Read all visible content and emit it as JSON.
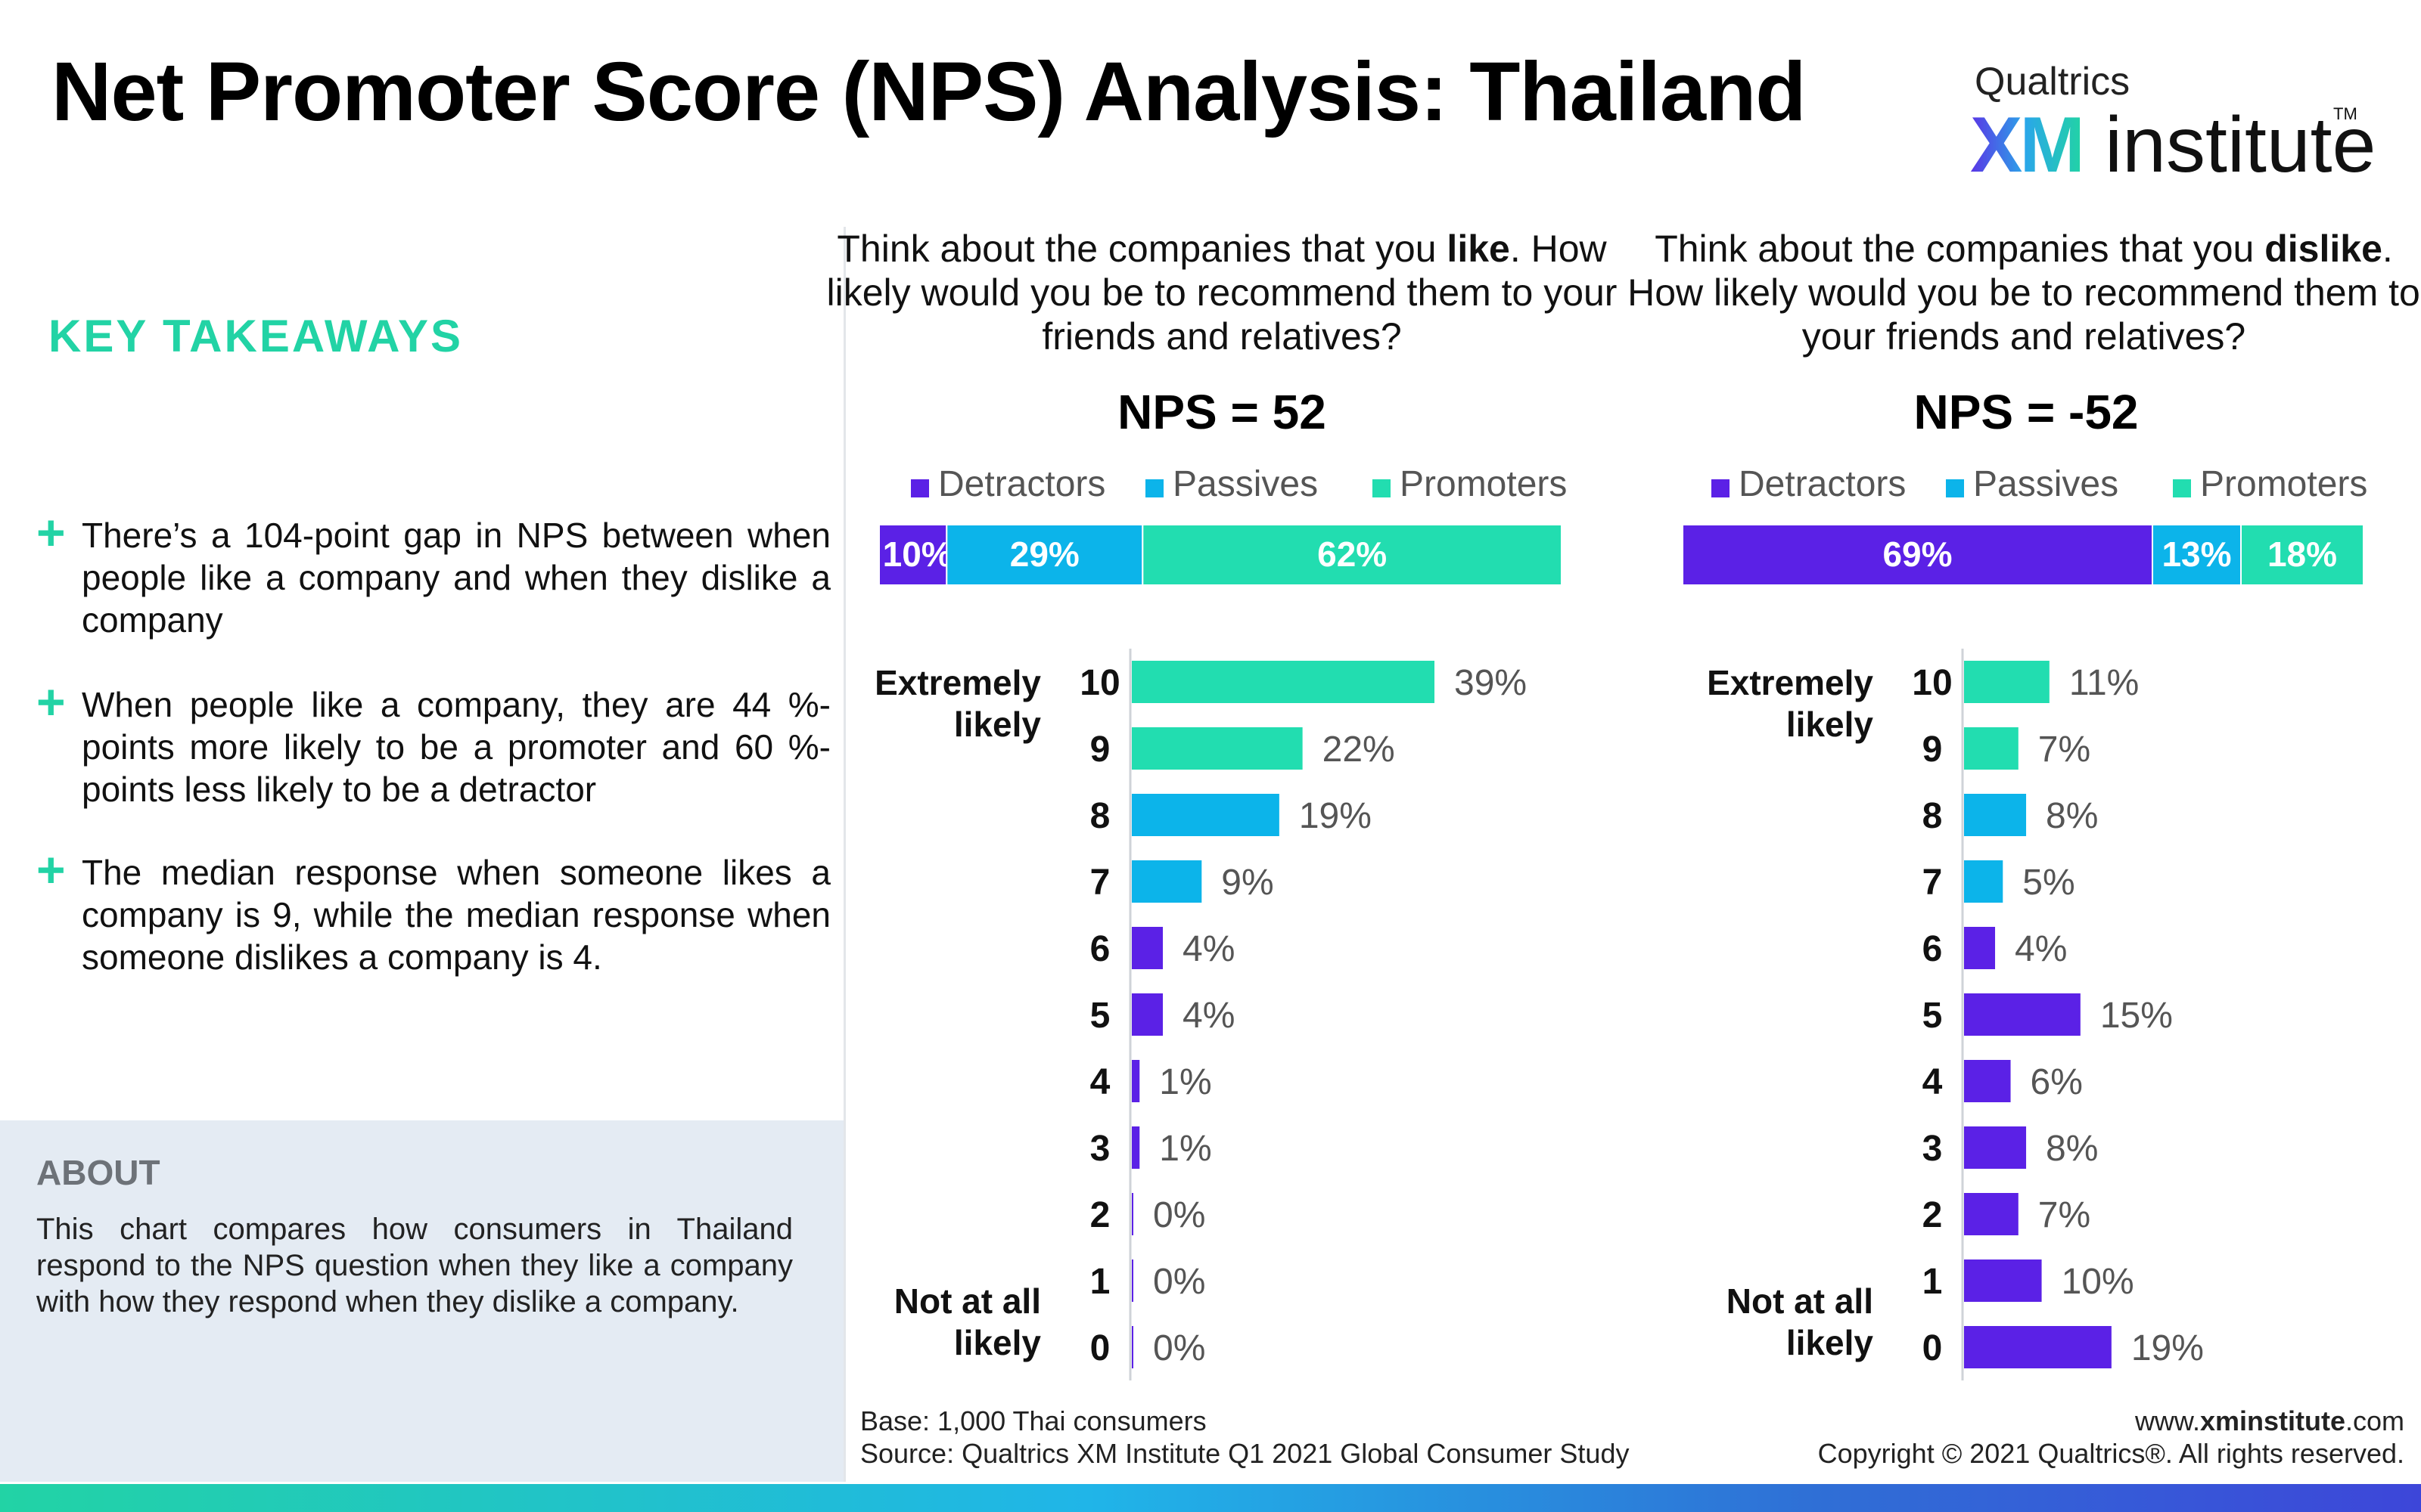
{
  "title": "Net Promoter Score (NPS) Analysis: Thailand",
  "logo": {
    "top": "Qualtrics",
    "xm": "XM",
    "institute": "institute",
    "tm": "TM"
  },
  "takeaways": {
    "heading": "KEY TAKEAWAYS",
    "plus_icon": "+",
    "items": [
      "There’s a 104-point gap in NPS between when people like a company and when they dislike a company",
      "When people like a company, they are 44 %-points more likely to be a promoter and 60 %-points less likely to be a detractor",
      "The median response when someone likes a company is 9, while the median response when someone dislikes a company is 4."
    ]
  },
  "about": {
    "heading": "ABOUT",
    "text": "This chart compares how consumers in Thailand respond to the NPS question when they like a company with how they respond when they dislike a company."
  },
  "colors": {
    "detractors": "#5b21e6",
    "passives": "#0cb4ea",
    "promoters": "#22ddb0",
    "accent": "#22d3a5"
  },
  "chart_data": [
    {
      "type": "bar",
      "question_prefix": "Think about the companies that you ",
      "question_emphasis": "like",
      "question_suffix": ". How likely would you be to recommend them to your friends and relatives?",
      "nps_label": "NPS = 52",
      "legend": [
        "Detractors",
        "Passives",
        "Promoters"
      ],
      "summary": [
        {
          "name": "Detractors",
          "value": 10,
          "label": "10%"
        },
        {
          "name": "Passives",
          "value": 29,
          "label": "29%"
        },
        {
          "name": "Promoters",
          "value": 62,
          "label": "62%"
        }
      ],
      "scale_top_label": [
        "Extremely",
        "likely"
      ],
      "scale_bottom_label": [
        "Not at all",
        "likely"
      ],
      "categories": [
        "10",
        "9",
        "8",
        "7",
        "6",
        "5",
        "4",
        "3",
        "2",
        "1",
        "0"
      ],
      "values": [
        39,
        22,
        19,
        9,
        4,
        4,
        1,
        1,
        0,
        0,
        0
      ],
      "value_labels": [
        "39%",
        "22%",
        "19%",
        "9%",
        "4%",
        "4%",
        "1%",
        "1%",
        "0%",
        "0%",
        "0%"
      ],
      "groups": [
        "Promoters",
        "Promoters",
        "Passives",
        "Passives",
        "Detractors",
        "Detractors",
        "Detractors",
        "Detractors",
        "Detractors",
        "Detractors",
        "Detractors"
      ]
    },
    {
      "type": "bar",
      "question_prefix": "Think about the companies that you ",
      "question_emphasis": "dislike",
      "question_suffix": ". How likely would you be to recommend them to your friends and relatives?",
      "nps_label": "NPS = -52",
      "legend": [
        "Detractors",
        "Passives",
        "Promoters"
      ],
      "summary": [
        {
          "name": "Detractors",
          "value": 69,
          "label": "69%"
        },
        {
          "name": "Passives",
          "value": 13,
          "label": "13%"
        },
        {
          "name": "Promoters",
          "value": 18,
          "label": "18%"
        }
      ],
      "scale_top_label": [
        "Extremely",
        "likely"
      ],
      "scale_bottom_label": [
        "Not at all",
        "likely"
      ],
      "categories": [
        "10",
        "9",
        "8",
        "7",
        "6",
        "5",
        "4",
        "3",
        "2",
        "1",
        "0"
      ],
      "values": [
        11,
        7,
        8,
        5,
        4,
        15,
        6,
        8,
        7,
        10,
        19
      ],
      "value_labels": [
        "11%",
        "7%",
        "8%",
        "5%",
        "4%",
        "15%",
        "6%",
        "8%",
        "7%",
        "10%",
        "19%"
      ],
      "groups": [
        "Promoters",
        "Promoters",
        "Passives",
        "Passives",
        "Detractors",
        "Detractors",
        "Detractors",
        "Detractors",
        "Detractors",
        "Detractors",
        "Detractors"
      ]
    }
  ],
  "footer": {
    "base": "Base: 1,000 Thai consumers",
    "source": "Source: Qualtrics XM Institute Q1 2021 Global Consumer Study",
    "url_prefix": "www.",
    "url_bold": "xminstitute",
    "url_suffix": ".com",
    "copyright": "Copyright © 2021 Qualtrics®. All rights reserved."
  }
}
